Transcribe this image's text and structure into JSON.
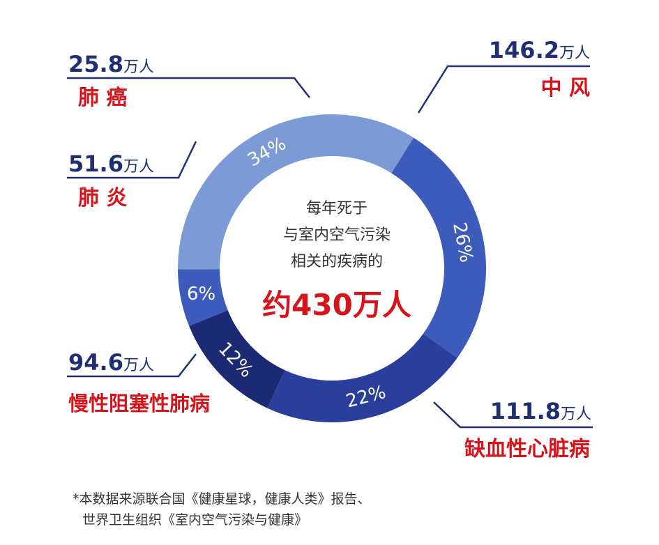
{
  "chart_data": {
    "type": "pie",
    "donut": true,
    "slices": [
      {
        "category": "肺 癌",
        "amount": "25.8",
        "unit": "万人",
        "percent": 6,
        "percent_label": "6%",
        "color": "#3c5bbd"
      },
      {
        "category": "中 风",
        "amount": "146.2",
        "unit": "万人",
        "percent": 34,
        "percent_label": "34%",
        "color": "#7c9ad6"
      },
      {
        "category": "缺血性心脏病",
        "amount": "111.8",
        "unit": "万人",
        "percent": 26,
        "percent_label": "26%",
        "color": "#3d5bbb"
      },
      {
        "category": "慢性阻塞性肺病",
        "amount": "94.6",
        "unit": "万人",
        "percent": 22,
        "percent_label": "22%",
        "color": "#2a3f9c"
      },
      {
        "category": "肺 炎",
        "amount": "51.6",
        "unit": "万人",
        "percent": 12,
        "percent_label": "12%",
        "color": "#1c2a73"
      }
    ],
    "center": {
      "lines": [
        "每年死于",
        "与室内空气污染",
        "相关的疾病的"
      ],
      "total": "约430万人"
    },
    "colors": {
      "leader": "#1f2f72",
      "amount": "#1f2f72",
      "category": "#d7141c"
    }
  },
  "footnote": {
    "line1": "*本数据来源联合国《健康星球，健康人类》报告、",
    "line2": "世界卫生组织《室内空气污染与健康》"
  }
}
